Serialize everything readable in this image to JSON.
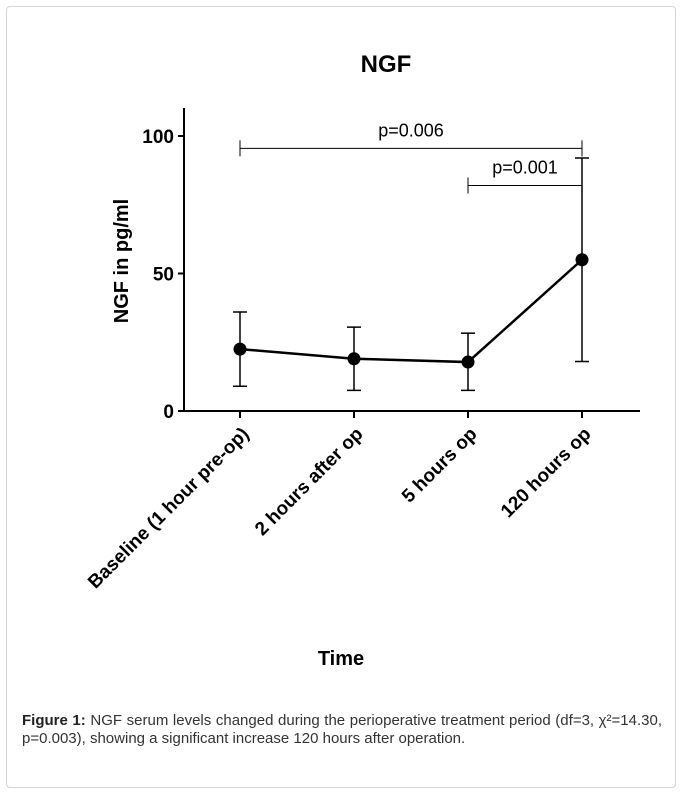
{
  "chart_data": {
    "type": "line",
    "title": "NGF",
    "xlabel": "Time",
    "ylabel": "NGF in pg/ml",
    "ylim": [
      0,
      110
    ],
    "yticks": [
      0,
      50,
      100
    ],
    "categories": [
      "Baseline (1 hour pre-op)",
      "2 hours after op",
      "5 hours op",
      "120 hours op"
    ],
    "series": [
      {
        "values": [
          22.5,
          19,
          17.8,
          55
        ],
        "error_low": [
          9,
          7.5,
          7.5,
          18
        ],
        "error_high": [
          36,
          30.5,
          28.3,
          92
        ]
      }
    ],
    "annotations": [
      {
        "text": "p=0.006",
        "from": "Baseline (1 hour pre-op)",
        "to": "120 hours op",
        "y": 95.5
      },
      {
        "text": "p=0.001",
        "from": "5 hours op",
        "to": "120 hours op",
        "y": 82
      }
    ],
    "grid": false,
    "legend": "none"
  },
  "caption": {
    "label": "Figure 1:",
    "text": "NGF serum levels changed during the perioperative treatment period (df=3, χ²=14.30, p=0.003), showing a significant increase 120 hours after operation."
  }
}
